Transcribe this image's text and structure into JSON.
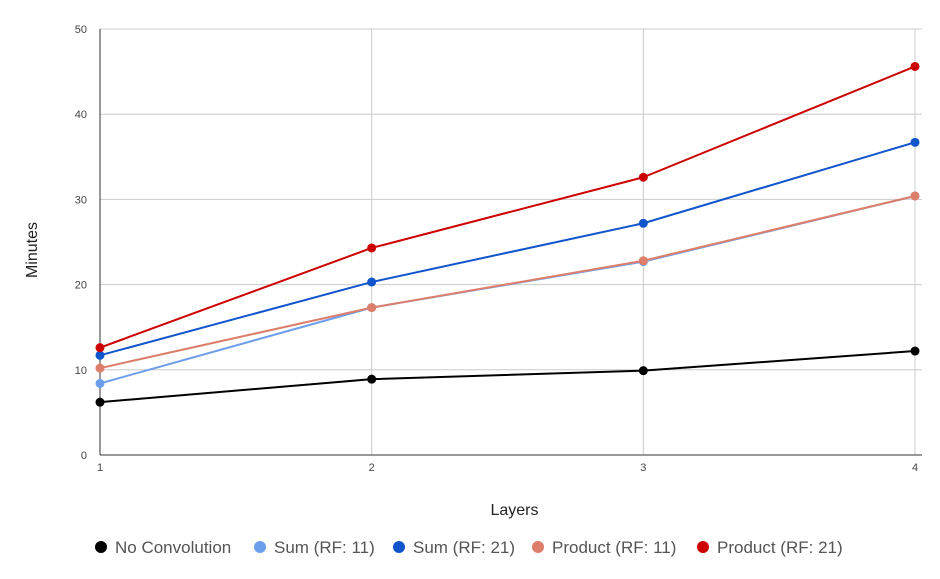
{
  "chart_data": {
    "type": "line",
    "title": "",
    "xlabel": "Layers",
    "ylabel": "Minutes",
    "x": [
      1,
      2,
      3,
      4
    ],
    "xlim": [
      1,
      4
    ],
    "ylim": [
      0,
      50
    ],
    "yticks": [
      0,
      10,
      20,
      30,
      40,
      50
    ],
    "xticks": [
      1,
      2,
      3,
      4
    ],
    "grid": true,
    "legend_position": "bottom",
    "series": [
      {
        "name": "No Convolution",
        "color": "#000000",
        "values": [
          6.2,
          8.9,
          9.9,
          12.2
        ]
      },
      {
        "name": "Sum (RF: 11)",
        "color": "#6d9eeb",
        "values": [
          8.4,
          17.3,
          22.7,
          30.4
        ]
      },
      {
        "name": "Sum (RF: 21)",
        "color": "#1155cc",
        "values": [
          11.7,
          20.3,
          27.2,
          36.7
        ]
      },
      {
        "name": "Product (RF: 11)",
        "color": "#dd7e6b",
        "values": [
          10.2,
          17.3,
          22.8,
          30.4
        ]
      },
      {
        "name": "Product (RF: 21)",
        "color": "#cc0000",
        "values": [
          12.6,
          24.3,
          32.6,
          45.6
        ]
      }
    ]
  }
}
